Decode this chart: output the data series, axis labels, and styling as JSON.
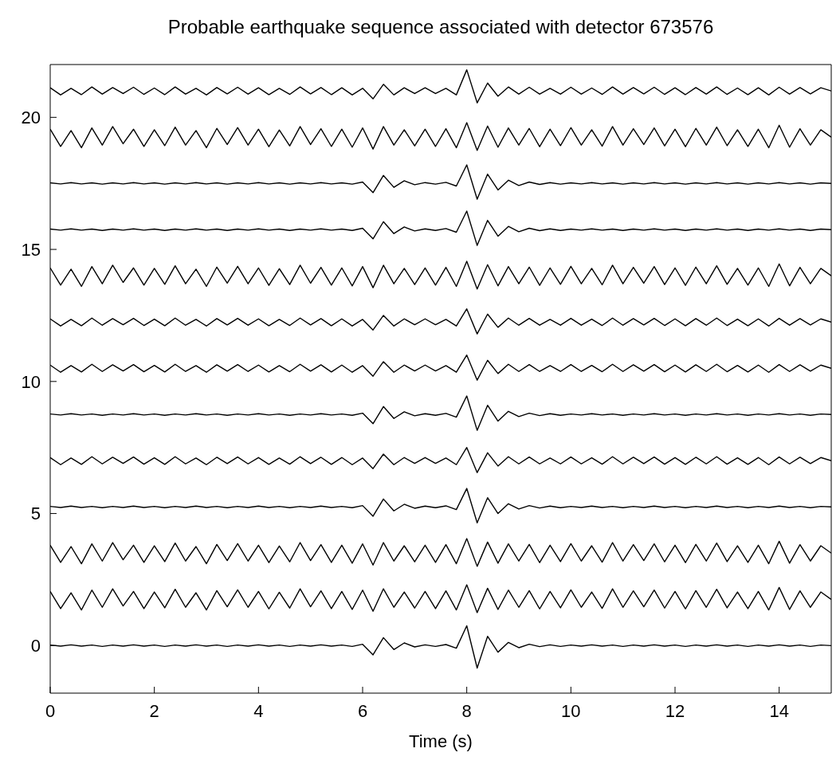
{
  "chart_data": {
    "type": "line",
    "title": "Probable earthquake sequence associated with detector 673576",
    "xlabel": "Time (s)",
    "x": [
      0,
      0.2,
      0.4,
      0.6,
      0.8,
      1,
      1.2,
      1.4,
      1.6,
      1.8,
      2,
      2.2,
      2.4,
      2.6,
      2.8,
      3,
      3.2,
      3.4,
      3.6,
      3.8,
      4,
      4.2,
      4.4,
      4.6,
      4.8,
      5,
      5.2,
      5.4,
      5.6,
      5.8,
      6,
      6.2,
      6.4,
      6.6,
      6.8,
      7,
      7.2,
      7.4,
      7.6,
      7.8,
      8,
      8.2,
      8.4,
      8.6,
      8.8,
      9,
      9.2,
      9.4,
      9.6,
      9.8,
      10,
      10.2,
      10.4,
      10.6,
      10.8,
      11,
      11.2,
      11.4,
      11.6,
      11.8,
      12,
      12.2,
      12.4,
      12.6,
      12.8,
      13,
      13.2,
      13.4,
      13.6,
      13.8,
      14,
      14.2,
      14.4,
      14.6,
      14.8,
      15
    ],
    "xlim": [
      0,
      15
    ],
    "xticks": [
      0,
      2,
      4,
      6,
      8,
      10,
      12,
      14
    ],
    "ylim": [
      -1.8,
      22
    ],
    "yticks": [
      0,
      5,
      10,
      15,
      20
    ],
    "series": [
      {
        "color": "#000000",
        "values": [
          0.02,
          -0.02,
          0.03,
          -0.02,
          0.02,
          -0.03,
          0.02,
          -0.02,
          0.03,
          -0.02,
          0.02,
          -0.03,
          0.02,
          -0.02,
          0.03,
          -0.02,
          0.02,
          -0.03,
          0.02,
          -0.02,
          0.03,
          -0.02,
          0.02,
          -0.03,
          0.02,
          -0.02,
          0.03,
          -0.02,
          0.02,
          -0.03,
          0.05,
          -0.35,
          0.3,
          -0.15,
          0.1,
          -0.05,
          0.03,
          -0.03,
          0.04,
          -0.1,
          0.75,
          -0.85,
          0.35,
          -0.25,
          0.12,
          -0.08,
          0.05,
          -0.04,
          0.03,
          -0.03,
          0.02,
          -0.02,
          0.03,
          -0.02,
          0.02,
          -0.03,
          0.02,
          -0.02,
          0.03,
          -0.02,
          0.02,
          -0.03,
          0.02,
          -0.02,
          0.03,
          -0.02,
          0.02,
          -0.03,
          0.02,
          -0.02,
          0.03,
          -0.02,
          0.02,
          -0.03,
          0.02,
          0
        ]
      },
      {
        "color": "#000000",
        "values": [
          2.05,
          1.4,
          2,
          1.35,
          2.1,
          1.45,
          2.15,
          1.5,
          2.05,
          1.4,
          2.03,
          1.43,
          2.13,
          1.45,
          2,
          1.35,
          2.08,
          1.47,
          2.11,
          1.45,
          2.05,
          1.39,
          2.02,
          1.42,
          2.15,
          1.47,
          2.07,
          1.4,
          2.05,
          1.37,
          2.1,
          1.3,
          2.15,
          1.45,
          2.03,
          1.42,
          2.05,
          1.4,
          2.07,
          1.35,
          2.3,
          1.25,
          2.17,
          1.37,
          2.1,
          1.45,
          2.08,
          1.39,
          2.05,
          1.43,
          2.11,
          1.45,
          2.03,
          1.41,
          2.15,
          1.45,
          2.07,
          1.47,
          2.1,
          1.42,
          2.05,
          1.39,
          2.08,
          1.45,
          2.13,
          1.43,
          2.03,
          1.4,
          2.05,
          1.35,
          2.2,
          1.37,
          2.07,
          1.45,
          2.03,
          1.75
        ]
      },
      {
        "color": "#000000",
        "values": [
          3.8,
          3.15,
          3.75,
          3.1,
          3.85,
          3.2,
          3.9,
          3.25,
          3.8,
          3.15,
          3.78,
          3.18,
          3.88,
          3.2,
          3.75,
          3.1,
          3.83,
          3.22,
          3.86,
          3.2,
          3.8,
          3.14,
          3.77,
          3.17,
          3.9,
          3.22,
          3.82,
          3.15,
          3.8,
          3.12,
          3.85,
          3.05,
          3.9,
          3.2,
          3.78,
          3.17,
          3.8,
          3.15,
          3.82,
          3.1,
          4.05,
          3,
          3.92,
          3.12,
          3.85,
          3.2,
          3.83,
          3.14,
          3.8,
          3.18,
          3.86,
          3.2,
          3.78,
          3.16,
          3.9,
          3.2,
          3.82,
          3.22,
          3.85,
          3.17,
          3.8,
          3.14,
          3.83,
          3.2,
          3.88,
          3.18,
          3.78,
          3.15,
          3.8,
          3.1,
          3.95,
          3.12,
          3.82,
          3.2,
          3.78,
          3.5
        ]
      },
      {
        "color": "#000000",
        "values": [
          5.27,
          5.23,
          5.28,
          5.23,
          5.27,
          5.22,
          5.27,
          5.23,
          5.28,
          5.23,
          5.27,
          5.22,
          5.27,
          5.23,
          5.28,
          5.23,
          5.27,
          5.22,
          5.27,
          5.23,
          5.28,
          5.23,
          5.27,
          5.22,
          5.27,
          5.23,
          5.28,
          5.23,
          5.27,
          5.22,
          5.3,
          4.9,
          5.55,
          5.1,
          5.35,
          5.2,
          5.28,
          5.22,
          5.29,
          5.15,
          5.95,
          4.65,
          5.6,
          5,
          5.37,
          5.17,
          5.3,
          5.21,
          5.28,
          5.22,
          5.27,
          5.23,
          5.28,
          5.23,
          5.27,
          5.22,
          5.27,
          5.23,
          5.28,
          5.23,
          5.27,
          5.22,
          5.27,
          5.23,
          5.28,
          5.23,
          5.27,
          5.22,
          5.27,
          5.23,
          5.28,
          5.23,
          5.27,
          5.22,
          5.27,
          5.25
        ]
      },
      {
        "color": "#000000",
        "values": [
          7.12,
          6.85,
          7.1,
          6.86,
          7.15,
          6.88,
          7.13,
          6.9,
          7.14,
          6.87,
          7.11,
          6.86,
          7.15,
          6.88,
          7.1,
          6.85,
          7.13,
          6.89,
          7.14,
          6.88,
          7.12,
          6.86,
          7.1,
          6.87,
          7.15,
          6.89,
          7.13,
          6.86,
          7.12,
          6.85,
          7.1,
          6.7,
          7.25,
          6.85,
          7.12,
          6.9,
          7.12,
          6.9,
          7.1,
          6.85,
          7.5,
          6.55,
          7.3,
          6.8,
          7.15,
          6.88,
          7.14,
          6.88,
          7.1,
          6.88,
          7.14,
          6.88,
          7.11,
          6.87,
          7.15,
          6.88,
          7.13,
          6.89,
          7.14,
          6.87,
          7.12,
          6.86,
          7.13,
          6.88,
          7.15,
          6.87,
          7.11,
          6.86,
          7.12,
          6.85,
          7.14,
          6.88,
          7.13,
          6.89,
          7.12,
          7
        ]
      },
      {
        "color": "#000000",
        "values": [
          8.77,
          8.73,
          8.78,
          8.73,
          8.77,
          8.72,
          8.77,
          8.73,
          8.78,
          8.73,
          8.77,
          8.72,
          8.77,
          8.73,
          8.78,
          8.73,
          8.77,
          8.72,
          8.77,
          8.73,
          8.78,
          8.73,
          8.77,
          8.72,
          8.77,
          8.73,
          8.78,
          8.73,
          8.77,
          8.72,
          8.8,
          8.4,
          9.05,
          8.6,
          8.85,
          8.7,
          8.78,
          8.72,
          8.79,
          8.65,
          9.45,
          8.15,
          9.1,
          8.5,
          8.87,
          8.67,
          8.8,
          8.71,
          8.78,
          8.72,
          8.77,
          8.73,
          8.78,
          8.73,
          8.77,
          8.72,
          8.77,
          8.73,
          8.78,
          8.73,
          8.77,
          8.72,
          8.77,
          8.73,
          8.78,
          8.73,
          8.77,
          8.72,
          8.77,
          8.73,
          8.78,
          8.73,
          8.77,
          8.72,
          8.77,
          8.75
        ]
      },
      {
        "color": "#000000",
        "values": [
          10.62,
          10.35,
          10.6,
          10.36,
          10.65,
          10.38,
          10.63,
          10.4,
          10.64,
          10.37,
          10.61,
          10.36,
          10.65,
          10.38,
          10.6,
          10.35,
          10.63,
          10.39,
          10.64,
          10.38,
          10.62,
          10.36,
          10.6,
          10.37,
          10.65,
          10.39,
          10.63,
          10.36,
          10.62,
          10.35,
          10.6,
          10.2,
          10.75,
          10.35,
          10.62,
          10.4,
          10.62,
          10.4,
          10.6,
          10.35,
          11,
          10.05,
          10.8,
          10.3,
          10.65,
          10.38,
          10.64,
          10.38,
          10.6,
          10.38,
          10.64,
          10.38,
          10.61,
          10.37,
          10.65,
          10.38,
          10.63,
          10.39,
          10.64,
          10.37,
          10.62,
          10.36,
          10.63,
          10.38,
          10.65,
          10.37,
          10.61,
          10.36,
          10.62,
          10.35,
          10.64,
          10.38,
          10.63,
          10.39,
          10.62,
          10.5
        ]
      },
      {
        "color": "#000000",
        "values": [
          12.37,
          12.1,
          12.35,
          12.11,
          12.4,
          12.13,
          12.38,
          12.15,
          12.39,
          12.12,
          12.36,
          12.11,
          12.4,
          12.13,
          12.35,
          12.1,
          12.38,
          12.14,
          12.39,
          12.13,
          12.37,
          12.11,
          12.35,
          12.12,
          12.4,
          12.14,
          12.38,
          12.11,
          12.37,
          12.1,
          12.35,
          11.95,
          12.5,
          12.1,
          12.37,
          12.15,
          12.37,
          12.15,
          12.35,
          12.1,
          12.75,
          11.8,
          12.55,
          12.05,
          12.4,
          12.13,
          12.39,
          12.13,
          12.35,
          12.13,
          12.39,
          12.13,
          12.36,
          12.12,
          12.4,
          12.13,
          12.38,
          12.14,
          12.39,
          12.12,
          12.37,
          12.11,
          12.38,
          12.13,
          12.4,
          12.12,
          12.36,
          12.11,
          12.37,
          12.1,
          12.39,
          12.13,
          12.38,
          12.14,
          12.37,
          12.25
        ]
      },
      {
        "color": "#000000",
        "values": [
          14.3,
          13.65,
          14.25,
          13.6,
          14.35,
          13.7,
          14.4,
          13.75,
          14.3,
          13.65,
          14.28,
          13.68,
          14.38,
          13.7,
          14.25,
          13.6,
          14.33,
          13.72,
          14.36,
          13.7,
          14.3,
          13.64,
          14.27,
          13.67,
          14.4,
          13.72,
          14.32,
          13.65,
          14.3,
          13.62,
          14.35,
          13.55,
          14.4,
          13.7,
          14.28,
          13.67,
          14.3,
          13.65,
          14.32,
          13.6,
          14.55,
          13.5,
          14.42,
          13.62,
          14.35,
          13.7,
          14.33,
          13.64,
          14.3,
          13.68,
          14.36,
          13.7,
          14.28,
          13.66,
          14.4,
          13.7,
          14.32,
          13.72,
          14.35,
          13.67,
          14.3,
          13.64,
          14.33,
          13.7,
          14.38,
          13.68,
          14.28,
          13.65,
          14.3,
          13.6,
          14.45,
          13.62,
          14.32,
          13.7,
          14.28,
          14
        ]
      },
      {
        "color": "#000000",
        "values": [
          15.77,
          15.73,
          15.78,
          15.73,
          15.77,
          15.72,
          15.77,
          15.73,
          15.78,
          15.73,
          15.77,
          15.72,
          15.77,
          15.73,
          15.78,
          15.73,
          15.77,
          15.72,
          15.77,
          15.73,
          15.78,
          15.73,
          15.77,
          15.72,
          15.77,
          15.73,
          15.78,
          15.73,
          15.77,
          15.72,
          15.8,
          15.4,
          16.05,
          15.6,
          15.85,
          15.7,
          15.78,
          15.72,
          15.79,
          15.65,
          16.45,
          15.15,
          16.1,
          15.5,
          15.87,
          15.67,
          15.8,
          15.71,
          15.78,
          15.72,
          15.77,
          15.73,
          15.78,
          15.73,
          15.77,
          15.72,
          15.77,
          15.73,
          15.78,
          15.73,
          15.77,
          15.72,
          15.77,
          15.73,
          15.78,
          15.73,
          15.77,
          15.72,
          15.77,
          15.73,
          15.78,
          15.73,
          15.77,
          15.72,
          15.77,
          15.75
        ]
      },
      {
        "color": "#000000",
        "values": [
          17.52,
          17.48,
          17.53,
          17.48,
          17.52,
          17.47,
          17.52,
          17.48,
          17.53,
          17.48,
          17.52,
          17.47,
          17.52,
          17.48,
          17.53,
          17.48,
          17.52,
          17.47,
          17.52,
          17.48,
          17.53,
          17.48,
          17.52,
          17.47,
          17.52,
          17.48,
          17.53,
          17.48,
          17.52,
          17.47,
          17.55,
          17.15,
          17.8,
          17.35,
          17.6,
          17.45,
          17.53,
          17.47,
          17.54,
          17.4,
          18.2,
          16.9,
          17.85,
          17.25,
          17.62,
          17.42,
          17.55,
          17.46,
          17.53,
          17.47,
          17.52,
          17.48,
          17.53,
          17.48,
          17.52,
          17.47,
          17.52,
          17.48,
          17.53,
          17.48,
          17.52,
          17.47,
          17.52,
          17.48,
          17.53,
          17.48,
          17.52,
          17.47,
          17.52,
          17.48,
          17.53,
          17.48,
          17.52,
          17.47,
          17.52,
          17.5
        ]
      },
      {
        "color": "#000000",
        "values": [
          19.55,
          18.9,
          19.5,
          18.85,
          19.6,
          18.95,
          19.65,
          19,
          19.55,
          18.9,
          19.53,
          18.93,
          19.63,
          18.95,
          19.5,
          18.85,
          19.58,
          18.97,
          19.61,
          18.95,
          19.55,
          18.89,
          19.52,
          18.92,
          19.65,
          18.97,
          19.57,
          18.9,
          19.55,
          18.87,
          19.6,
          18.8,
          19.65,
          18.95,
          19.53,
          18.92,
          19.55,
          18.9,
          19.57,
          18.85,
          19.8,
          18.75,
          19.67,
          18.87,
          19.6,
          18.95,
          19.58,
          18.89,
          19.55,
          18.93,
          19.61,
          18.95,
          19.53,
          18.91,
          19.65,
          18.95,
          19.57,
          18.97,
          19.6,
          18.92,
          19.55,
          18.89,
          19.58,
          18.95,
          19.63,
          18.93,
          19.53,
          18.9,
          19.55,
          18.85,
          19.7,
          18.87,
          19.57,
          18.95,
          19.53,
          19.25
        ]
      },
      {
        "color": "#000000",
        "values": [
          21.12,
          20.85,
          21.1,
          20.86,
          21.15,
          20.88,
          21.13,
          20.9,
          21.14,
          20.87,
          21.11,
          20.86,
          21.15,
          20.88,
          21.1,
          20.85,
          21.13,
          20.89,
          21.14,
          20.88,
          21.12,
          20.86,
          21.1,
          20.87,
          21.15,
          20.89,
          21.13,
          20.86,
          21.12,
          20.85,
          21.1,
          20.7,
          21.25,
          20.85,
          21.12,
          20.9,
          21.12,
          20.9,
          21.1,
          20.85,
          21.8,
          20.55,
          21.3,
          20.8,
          21.15,
          20.88,
          21.14,
          20.88,
          21.1,
          20.88,
          21.14,
          20.88,
          21.11,
          20.87,
          21.15,
          20.88,
          21.13,
          20.89,
          21.14,
          20.87,
          21.12,
          20.86,
          21.13,
          20.88,
          21.15,
          20.87,
          21.11,
          20.86,
          21.12,
          20.85,
          21.14,
          20.88,
          21.13,
          20.89,
          21.12,
          21
        ]
      }
    ]
  }
}
